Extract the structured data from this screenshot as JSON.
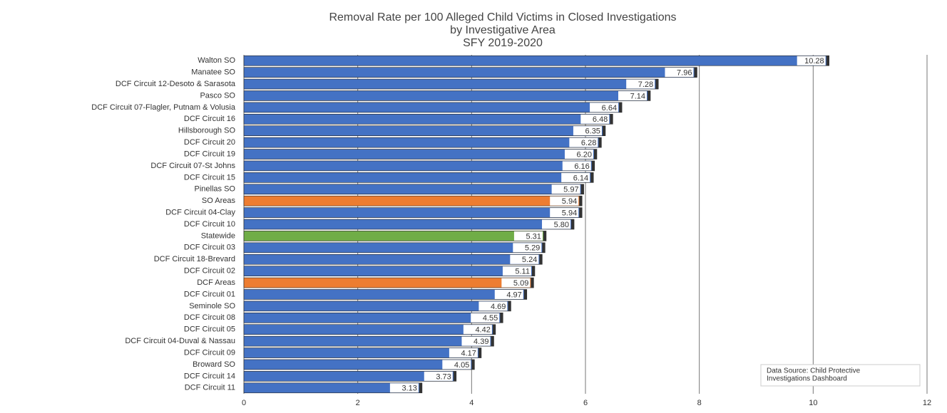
{
  "chart_data": {
    "type": "barh",
    "title": "Removal Rate per 100 Alleged Child Victims in Closed Investigations",
    "subtitle": [
      "by Investigative Area",
      "SFY 2019-2020"
    ],
    "categories": [
      "Walton SO",
      "Manatee SO",
      "DCF Circuit 12-Desoto & Sarasota",
      "Pasco SO",
      "DCF Circuit 07-Flagler, Putnam & Volusia",
      "DCF Circuit 16",
      "Hillsborough SO",
      "DCF Circuit 20",
      "DCF Circuit 19",
      "DCF Circuit 07-St Johns",
      "DCF Circuit 15",
      "Pinellas SO",
      "SO Areas",
      "DCF Circuit 04-Clay",
      "DCF Circuit 10",
      "Statewide",
      "DCF Circuit 03",
      "DCF Circuit 18-Brevard",
      "DCF Circuit 02",
      "DCF Areas",
      "DCF Circuit 01",
      "Seminole SO",
      "DCF Circuit 08",
      "DCF Circuit 05",
      "DCF Circuit 04-Duval & Nassau",
      "DCF Circuit 09",
      "Broward SO",
      "DCF Circuit 14",
      "DCF Circuit 11"
    ],
    "values": [
      10.28,
      7.96,
      7.28,
      7.14,
      6.64,
      6.48,
      6.35,
      6.28,
      6.2,
      6.16,
      6.14,
      5.97,
      5.94,
      5.94,
      5.8,
      5.31,
      5.29,
      5.24,
      5.11,
      5.09,
      4.97,
      4.69,
      4.55,
      4.42,
      4.39,
      4.17,
      4.05,
      3.73,
      3.13
    ],
    "value_labels": [
      "10.28",
      "7.96",
      "7.28",
      "7.14",
      "6.64",
      "6.48",
      "6.35",
      "6.28",
      "6.20",
      "6.16",
      "6.14",
      "5.97",
      "5.94",
      "5.94",
      "5.80",
      "5.31",
      "5.29",
      "5.24",
      "5.11",
      "5.09",
      "4.97",
      "4.69",
      "4.55",
      "4.42",
      "4.39",
      "4.17",
      "4.05",
      "3.73",
      "3.13"
    ],
    "colors": [
      "#4472c4",
      "#4472c4",
      "#4472c4",
      "#4472c4",
      "#4472c4",
      "#4472c4",
      "#4472c4",
      "#4472c4",
      "#4472c4",
      "#4472c4",
      "#4472c4",
      "#4472c4",
      "#ed7d31",
      "#4472c4",
      "#4472c4",
      "#70ad47",
      "#4472c4",
      "#4472c4",
      "#4472c4",
      "#ed7d31",
      "#4472c4",
      "#4472c4",
      "#4472c4",
      "#4472c4",
      "#4472c4",
      "#4472c4",
      "#4472c4",
      "#4472c4",
      "#4472c4"
    ],
    "xlim": [
      0,
      12
    ],
    "xticks": [
      0,
      2,
      4,
      6,
      8,
      10,
      12
    ],
    "grid": true,
    "annotation": [
      "Data Source: Child Protective",
      "Investigations Dashboard"
    ]
  }
}
